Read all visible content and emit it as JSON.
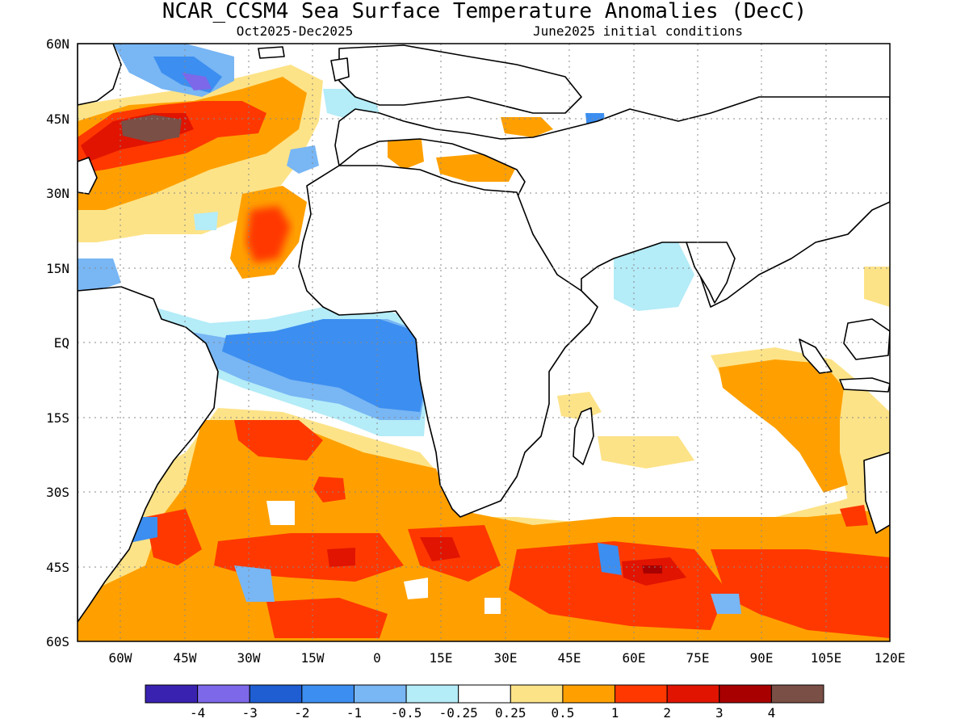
{
  "title": "NCAR_CCSM4 Sea Surface Temperature Anomalies (DecC)",
  "period": "Oct2025-Dec2025",
  "init": "June2025 initial conditions",
  "lat_ticks": [
    "60N",
    "45N",
    "30N",
    "15N",
    "EQ",
    "15S",
    "30S",
    "45S",
    "60S"
  ],
  "lon_ticks": [
    "60W",
    "45W",
    "30W",
    "15W",
    "0",
    "15E",
    "30E",
    "45E",
    "60E",
    "75E",
    "90E",
    "105E",
    "120E"
  ],
  "colorbar": {
    "labels": [
      "-4",
      "-3",
      "-2",
      "-1",
      "-0.5",
      "-0.25",
      "0.25",
      "0.5",
      "1",
      "2",
      "3",
      "4"
    ],
    "colors": [
      "#3a22b0",
      "#7c68e8",
      "#1e5ed2",
      "#3c8ef0",
      "#78b6f4",
      "#b4ecf8",
      "#ffffff",
      "#fde388",
      "#ffa000",
      "#ff3800",
      "#e01400",
      "#a80000",
      "#7a4f46"
    ]
  },
  "map": {
    "projection": "lat-lon",
    "lon_range": [
      -70,
      120
    ],
    "lat_range": [
      -60,
      60
    ],
    "region": "Atlantic and Indian Oceans",
    "grid": "dotted"
  }
}
